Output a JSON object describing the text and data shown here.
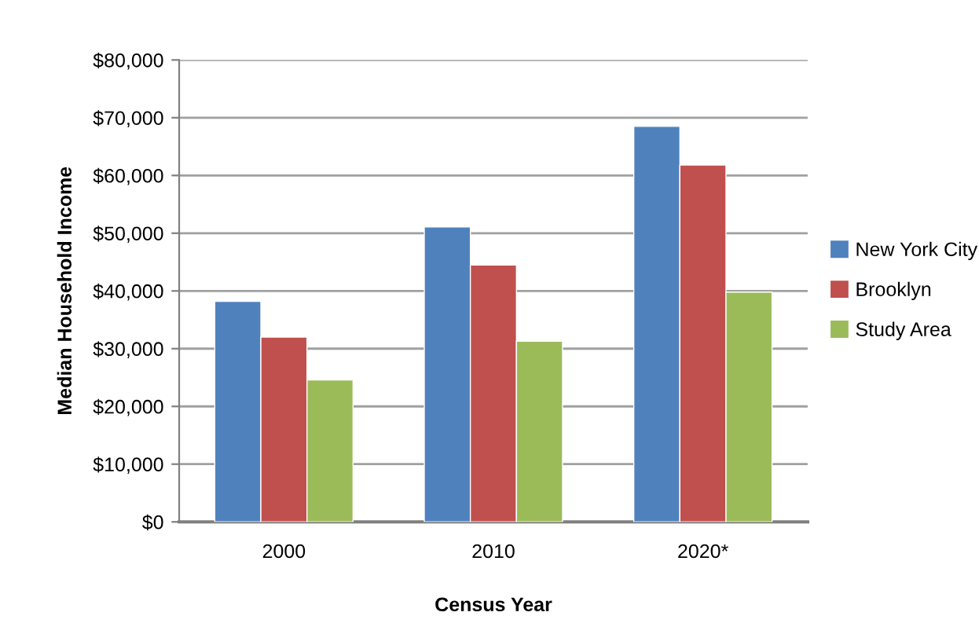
{
  "chart_data": {
    "type": "bar",
    "xlabel": "Census Year",
    "ylabel": "Median Household Income",
    "categories": [
      "2000",
      "2010",
      "2020*"
    ],
    "series": [
      {
        "name": "New York City",
        "color": "#4f81bd",
        "values": [
          38200,
          51100,
          68500
        ]
      },
      {
        "name": "Brooklyn",
        "color": "#c0504d",
        "values": [
          32000,
          44500,
          61800
        ]
      },
      {
        "name": "Study Area",
        "color": "#9bbb59",
        "values": [
          24600,
          31300,
          39800
        ]
      }
    ],
    "ylim": [
      0,
      80000
    ],
    "yticks": [
      {
        "value": 0,
        "label": "$0"
      },
      {
        "value": 10000,
        "label": "$10,000"
      },
      {
        "value": 20000,
        "label": "$20,000"
      },
      {
        "value": 30000,
        "label": "$30,000"
      },
      {
        "value": 40000,
        "label": "$40,000"
      },
      {
        "value": 50000,
        "label": "$50,000"
      },
      {
        "value": 60000,
        "label": "$60,000"
      },
      {
        "value": 70000,
        "label": "$70,000"
      },
      {
        "value": 80000,
        "label": "$80,000"
      }
    ],
    "grid": "y",
    "legend": "right"
  }
}
